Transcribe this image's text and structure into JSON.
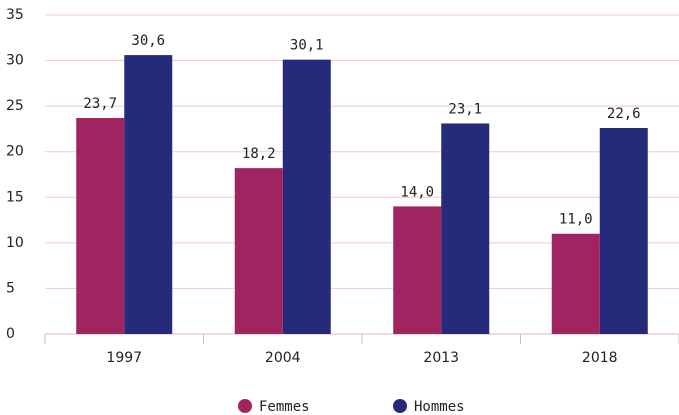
{
  "chart_data": {
    "type": "bar",
    "categories": [
      "1997",
      "2004",
      "2013",
      "2018"
    ],
    "series": [
      {
        "name": "Femmes",
        "color": "#a0245f",
        "values": [
          23.7,
          18.2,
          14.0,
          11.0
        ],
        "value_labels": [
          "23,7",
          "18,2",
          "14,0",
          "11,0"
        ]
      },
      {
        "name": "Hommes",
        "color": "#262a7a",
        "values": [
          30.6,
          30.1,
          23.1,
          22.6
        ],
        "value_labels": [
          "30,6",
          "30,1",
          "23,1",
          "22,6"
        ]
      }
    ],
    "ylim": [
      0,
      35
    ],
    "yticks": [
      0,
      5,
      10,
      15,
      20,
      25,
      30,
      35
    ],
    "grid": true,
    "legend": "bottom"
  }
}
